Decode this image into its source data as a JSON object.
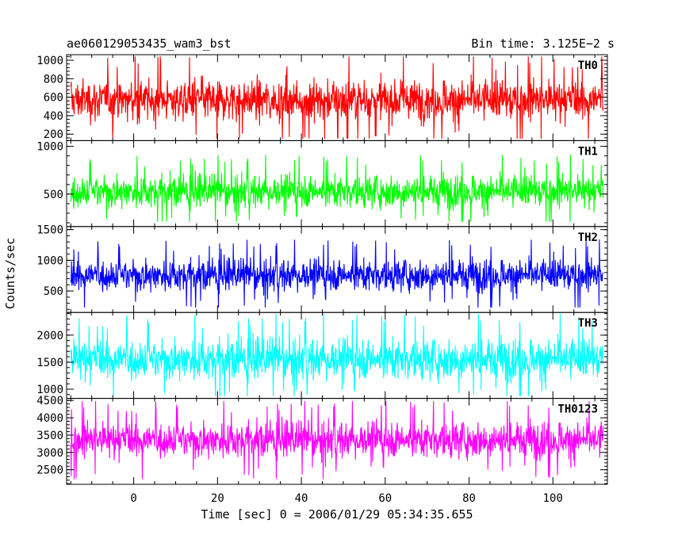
{
  "header": {
    "title": "ae060129053435_wam3_bst",
    "bin_time": "Bin time: 3.125E−2 s"
  },
  "chart_data": {
    "type": "line",
    "title": "ae060129053435_wam3_bst",
    "subtitle": "Bin time: 3.125E−2 s",
    "xlabel": "Time [sec] 0 = 2006/01/29 05:34:35.655",
    "ylabel": "Counts/sec",
    "xlim": [
      -16,
      113
    ],
    "x_ticks": [
      0,
      20,
      40,
      60,
      80,
      100
    ],
    "x_data_range": [
      -15,
      112
    ],
    "bin_time_sec": 0.03125,
    "colors": {
      "TH0": "#ff0000",
      "TH1": "#00ff00",
      "TH2": "#0000ff",
      "TH3": "#00ffff",
      "TH0123": "#ff00ff"
    },
    "series": [
      {
        "name": "TH0",
        "color": "#ff0000",
        "ylim": [
          130,
          1060
        ],
        "yticks": [
          200,
          400,
          600,
          800,
          1000
        ],
        "center": 570,
        "min": 150,
        "max": 1040,
        "dense_low": 300,
        "dense_high": 860
      },
      {
        "name": "TH1",
        "color": "#00ff00",
        "ylim": [
          160,
          1060
        ],
        "yticks": [
          500,
          1000
        ],
        "center": 530,
        "min": 210,
        "max": 1010,
        "dense_low": 330,
        "dense_high": 760
      },
      {
        "name": "TH2",
        "color": "#0000ff",
        "ylim": [
          150,
          1550
        ],
        "yticks": [
          500,
          1000,
          1500
        ],
        "center": 760,
        "min": 230,
        "max": 1480,
        "dense_low": 470,
        "dense_high": 1120
      },
      {
        "name": "TH3",
        "color": "#00ffff",
        "ylim": [
          830,
          2420
        ],
        "yticks": [
          1000,
          1500,
          2000
        ],
        "center": 1560,
        "min": 870,
        "max": 2400,
        "dense_low": 1100,
        "dense_high": 2050
      },
      {
        "name": "TH0123",
        "color": "#ff00ff",
        "ylim": [
          2080,
          4560
        ],
        "yticks": [
          2500,
          3000,
          3500,
          4000,
          4500
        ],
        "center": 3370,
        "min": 2200,
        "max": 4480,
        "dense_low": 2750,
        "dense_high": 4050
      }
    ]
  }
}
